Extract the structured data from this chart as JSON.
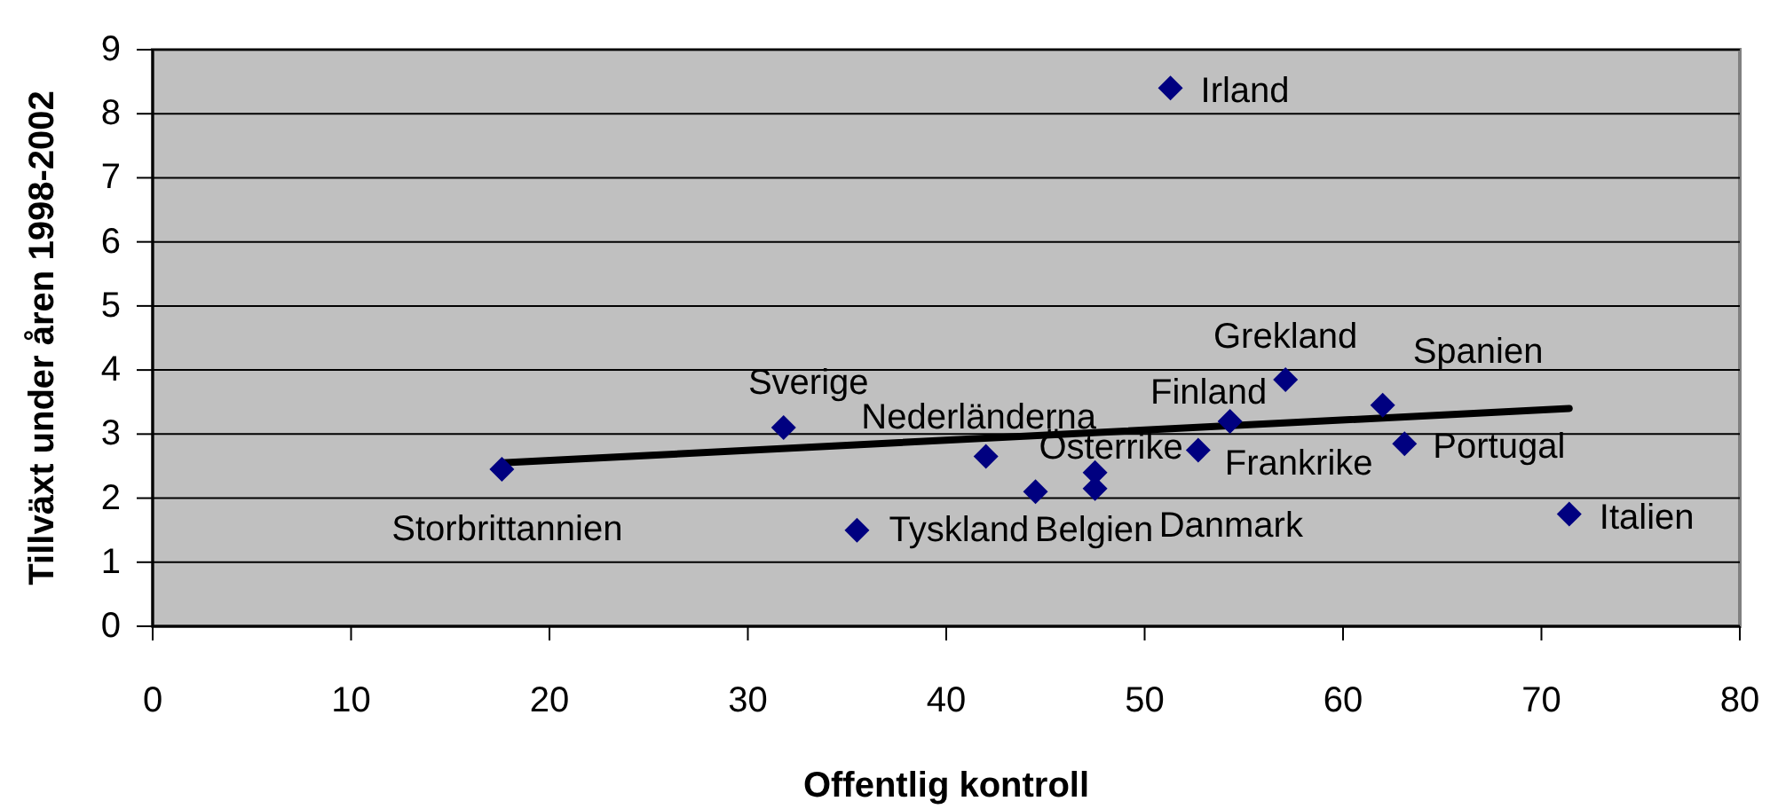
{
  "chart_data": {
    "type": "scatter",
    "xlabel": "Offentlig kontroll",
    "ylabel": "Tillväxt under åren 1998-2002",
    "xlim": [
      0,
      80
    ],
    "xticks": [
      0,
      10,
      20,
      30,
      40,
      50,
      60,
      70,
      80
    ],
    "ylim": [
      0,
      9
    ],
    "yticks": [
      0,
      1,
      2,
      3,
      4,
      5,
      6,
      7,
      8,
      9
    ],
    "grid": "y",
    "marker": "diamond",
    "series": [
      {
        "type": "scatter",
        "color": "#000080",
        "x": [
          17.6,
          31.8,
          35.5,
          42.0,
          47.5,
          47.5,
          44.5,
          52.7,
          54.3,
          51.3,
          57.1,
          62.0,
          63.1,
          71.4
        ],
        "values": [
          2.45,
          3.1,
          1.5,
          2.65,
          2.15,
          2.4,
          2.1,
          2.75,
          3.2,
          8.4,
          3.85,
          3.45,
          2.85,
          1.75
        ]
      },
      {
        "type": "line",
        "color": "#000000",
        "marker": "none",
        "x": [
          17.6,
          71.4
        ],
        "values": [
          2.55,
          3.4
        ]
      }
    ],
    "annotations": [
      {
        "text": "Storbrittannien",
        "x": 17.6,
        "y": 2.45
      },
      {
        "text": "Sverige",
        "x": 31.8,
        "y": 3.1
      },
      {
        "text": "Tyskland",
        "x": 35.5,
        "y": 1.5
      },
      {
        "text": "Nederländerna",
        "x": 42.0,
        "y": 2.65
      },
      {
        "text": "Belgien",
        "x": 44.5,
        "y": 2.1
      },
      {
        "text": "Österrike",
        "x": 47.5,
        "y": 2.4
      },
      {
        "text": "Danmark",
        "x": 47.5,
        "y": 2.15
      },
      {
        "text": "Frankrike",
        "x": 52.7,
        "y": 2.75
      },
      {
        "text": "Finland",
        "x": 54.3,
        "y": 3.2
      },
      {
        "text": "Irland",
        "x": 51.3,
        "y": 8.4
      },
      {
        "text": "Grekland",
        "x": 57.1,
        "y": 3.85
      },
      {
        "text": "Spanien",
        "x": 62.0,
        "y": 3.45
      },
      {
        "text": "Portugal",
        "x": 63.1,
        "y": 2.85
      },
      {
        "text": "Italien",
        "x": 71.4,
        "y": 1.75
      }
    ]
  }
}
